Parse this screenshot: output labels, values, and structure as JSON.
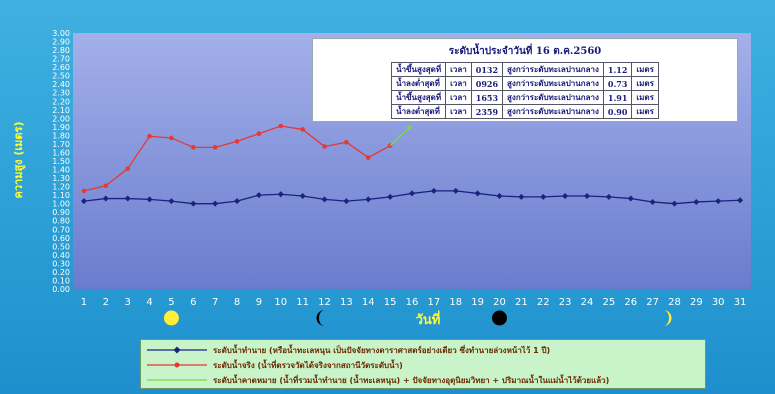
{
  "chart_data": {
    "type": "line",
    "title": "",
    "ylabel": "ความสูง (เมตร)",
    "xlabel": "วันที่",
    "ylim": [
      0,
      3
    ],
    "yticks": [
      "0.00",
      "0.10",
      "0.20",
      "0.30",
      "0.40",
      "0.50",
      "0.60",
      "0.70",
      "0.80",
      "0.90",
      "1.00",
      "1.10",
      "1.20",
      "1.30",
      "1.40",
      "1.50",
      "1.60",
      "1.70",
      "1.80",
      "1.90",
      "2.00",
      "2.10",
      "2.20",
      "2.30",
      "2.40",
      "2.50",
      "2.60",
      "2.70",
      "2.80",
      "2.90",
      "3.00"
    ],
    "x": [
      1,
      2,
      3,
      4,
      5,
      6,
      7,
      8,
      9,
      10,
      11,
      12,
      13,
      14,
      15,
      16,
      17,
      18,
      19,
      20,
      21,
      22,
      23,
      24,
      25,
      26,
      27,
      28,
      29,
      30,
      31
    ],
    "grid": false,
    "series": [
      {
        "name": "ระดับน้ำทำนาย (หรือน้ำทะเลหนุน เป็นปัจจัยทางดาราศาสตร์อย่างเดียว ซึ่งทำนายล่วงหน้าไว้ 1 ปี)",
        "color": "#1a237e",
        "marker": "diamond",
        "values": [
          1.03,
          1.06,
          1.06,
          1.05,
          1.03,
          1.0,
          1.0,
          1.03,
          1.1,
          1.11,
          1.09,
          1.05,
          1.03,
          1.05,
          1.08,
          1.12,
          1.15,
          1.15,
          1.12,
          1.09,
          1.08,
          1.08,
          1.09,
          1.09,
          1.08,
          1.06,
          1.02,
          1.0,
          1.02,
          1.03,
          1.04
        ]
      },
      {
        "name": "ระดับน้ำจริง (น้ำที่ตรวจวัดได้จริงจากสถานีวัดระดับน้ำ)",
        "color": "#e53935",
        "marker": "circle",
        "values": [
          1.15,
          1.21,
          1.41,
          1.79,
          1.77,
          1.66,
          1.66,
          1.73,
          1.82,
          1.91,
          1.87,
          1.67,
          1.72,
          1.54,
          1.68,
          null,
          null,
          null,
          null,
          null,
          null,
          null,
          null,
          null,
          null,
          null,
          null,
          null,
          null,
          null,
          null
        ]
      },
      {
        "name": "ระดับน้ำคาดหมาย (น้ำที่รวมน้ำทำนาย (น้ำทะเลหนุน) + ปัจจัยทางอุตุนิยมวิทยา + ปริมาณน้ำในแม่น้ำไว้ด้วยแล้ว)",
        "color": "#7cdc3c",
        "marker": "none",
        "values": [
          null,
          null,
          null,
          null,
          null,
          null,
          null,
          null,
          null,
          null,
          null,
          null,
          null,
          null,
          1.68,
          1.92,
          null,
          null,
          null,
          null,
          null,
          null,
          null,
          null,
          null,
          null,
          null,
          null,
          null,
          null,
          null
        ]
      }
    ],
    "moon_phases": [
      {
        "day": 5,
        "phase": "full"
      },
      {
        "day": 12,
        "phase": "last-quarter"
      },
      {
        "day": 20,
        "phase": "new"
      },
      {
        "day": 27.5,
        "phase": "first-quarter"
      }
    ]
  },
  "tide_table": {
    "title": "ระดับน้ำประจำวันที่ 16 ต.ค.2560",
    "rows": [
      [
        "น้ำขึ้นสูงสุดที่",
        "เวลา",
        "0132",
        "สูงกว่าระดับทะเลปานกลาง",
        "1.12",
        "เมตร"
      ],
      [
        "น้ำลงต่ำสุดที่",
        "เวลา",
        "0926",
        "สูงกว่าระดับทะเลปานกลาง",
        "0.73",
        "เมตร"
      ],
      [
        "น้ำขึ้นสูงสุดที่",
        "เวลา",
        "1653",
        "สูงกว่าระดับทะเลปานกลาง",
        "1.91",
        "เมตร"
      ],
      [
        "น้ำลงต่ำสุดที่",
        "เวลา",
        "2359",
        "สูงกว่าระดับทะเลปานกลาง",
        "0.90",
        "เมตร"
      ]
    ]
  },
  "colors": {
    "plot_top": "#9aa8e6",
    "plot_bottom": "#6c80d0",
    "moon": "#ffee33",
    "new_moon": "#000000"
  }
}
